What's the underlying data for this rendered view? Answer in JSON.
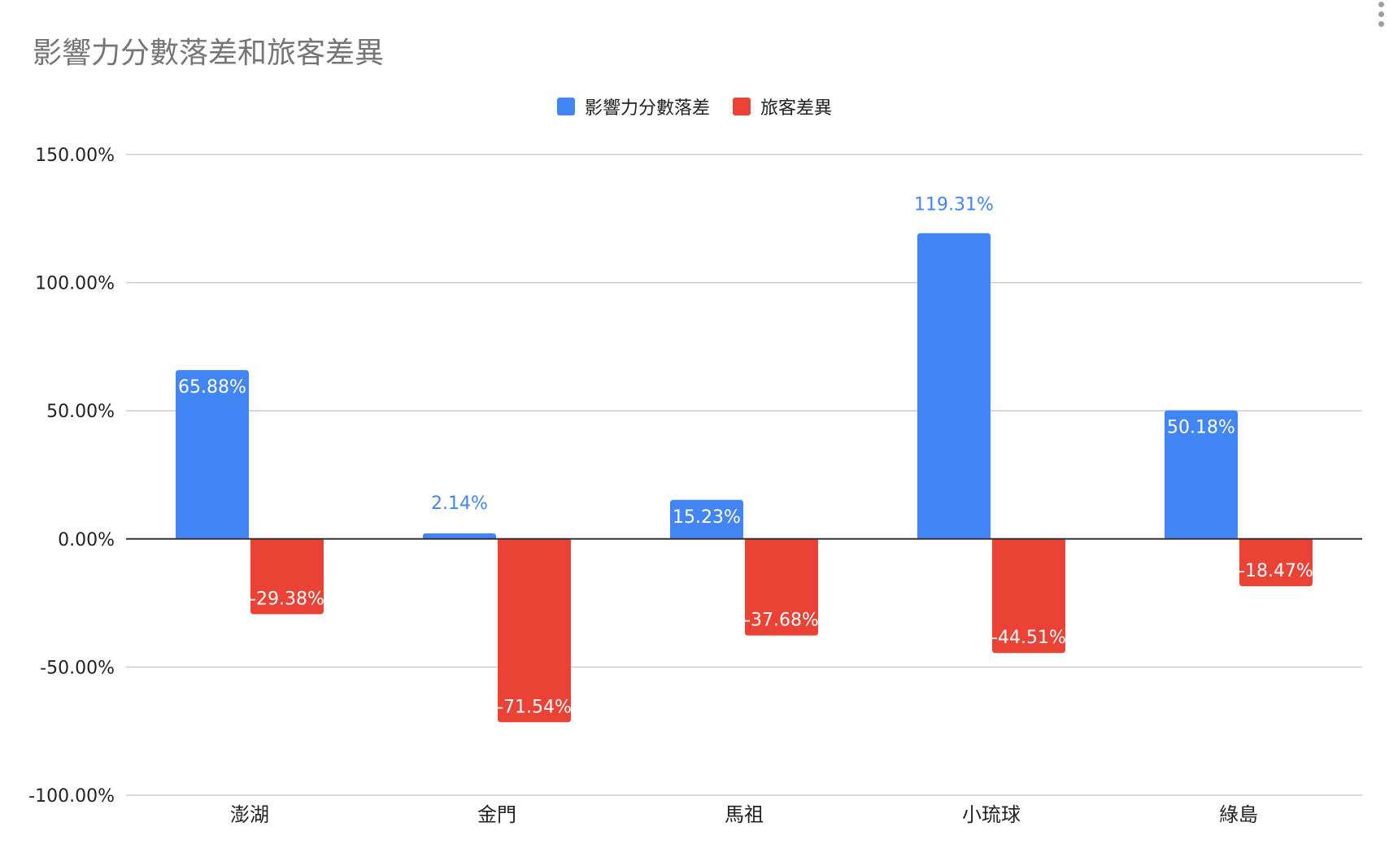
{
  "chart_data": {
    "type": "bar",
    "title": "影響力分數落差和旅客差異",
    "xlabel": "",
    "ylabel": "",
    "categories": [
      "澎湖",
      "金門",
      "馬祖",
      "小琉球",
      "綠島"
    ],
    "series": [
      {
        "name": "影響力分數落差",
        "color": "#4285F4",
        "values": [
          65.88,
          2.14,
          15.23,
          119.31,
          50.18
        ],
        "labels": [
          "65.88%",
          "2.14%",
          "15.23%",
          "119.31%",
          "50.18%"
        ]
      },
      {
        "name": "旅客差異",
        "color": "#EA4335",
        "values": [
          -29.38,
          -71.54,
          -37.68,
          -44.51,
          -18.47
        ],
        "labels": [
          "-29.38%",
          "-71.54%",
          "-37.68%",
          "-44.51%",
          "-18.47%"
        ]
      }
    ],
    "ylim": [
      -100,
      150
    ],
    "yticks": [
      150,
      100,
      50,
      0,
      -50,
      -100
    ],
    "ytick_labels": [
      "150.00%",
      "100.00%",
      "50.00%",
      "0.00%",
      "-50.00%",
      "-100.00%"
    ],
    "grid": true,
    "legend_position": "top-center"
  },
  "menu": {
    "icon": "more-vert-icon"
  },
  "colors": {
    "title": "#757575",
    "gridline": "#CCCCCC",
    "zero_line": "#333333",
    "axis_text": "#222222"
  }
}
